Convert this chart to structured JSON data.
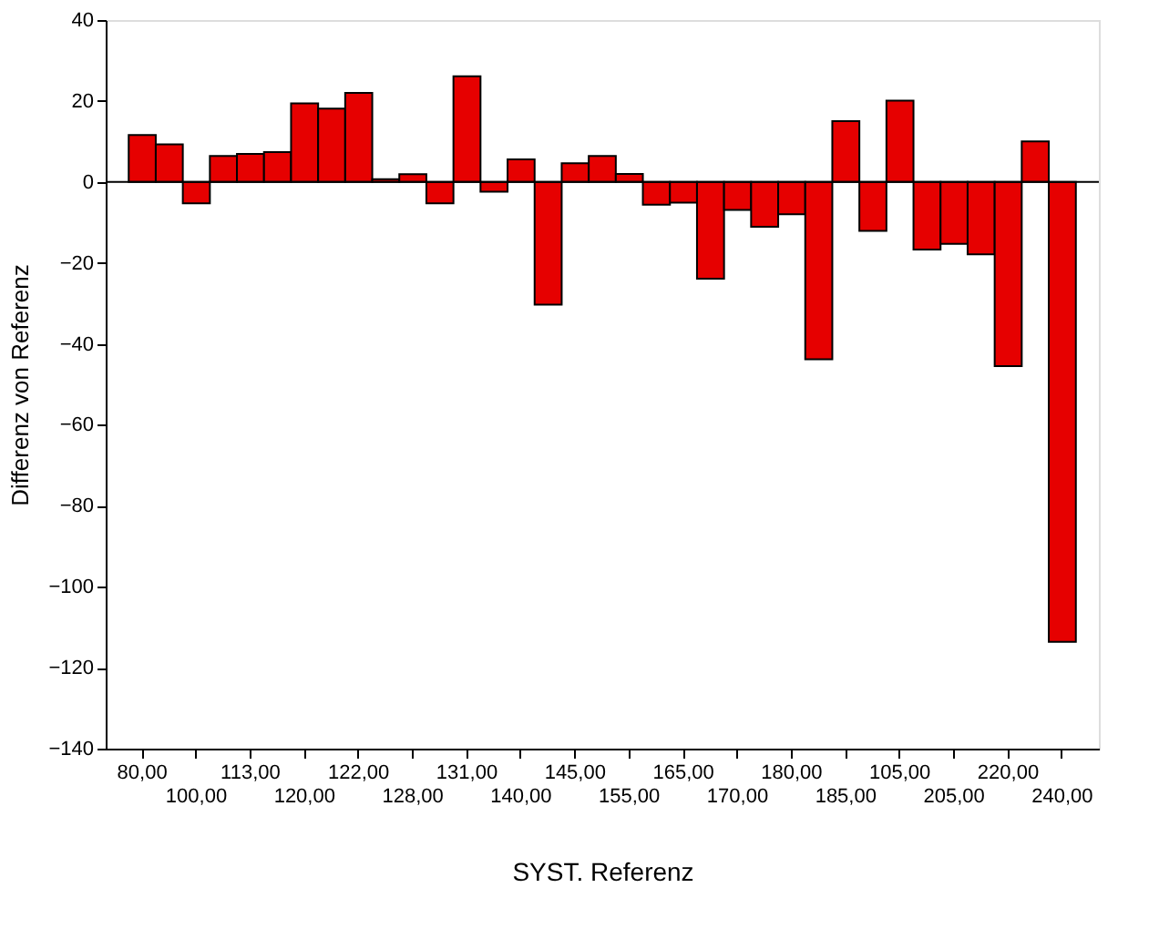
{
  "chart_data": {
    "type": "bar",
    "xlabel": "SYST. Referenz",
    "ylabel": "Differenz von Referenz",
    "categories": [
      "80,00",
      null,
      "100,00",
      null,
      "113,00",
      null,
      "120,00",
      null,
      "122,00",
      null,
      "128,00",
      null,
      "131,00",
      null,
      "140,00",
      null,
      "145,00",
      null,
      "155,00",
      null,
      "165,00",
      null,
      "170,00",
      null,
      "180,00",
      null,
      "185,00",
      null,
      "105,00",
      null,
      "205,00",
      null,
      "220,00",
      null,
      "240,00"
    ],
    "values": [
      11.6,
      9.3,
      -5.3,
      6.4,
      6.9,
      7.4,
      19.4,
      18.1,
      22,
      0.7,
      1.9,
      -5.3,
      26.1,
      -2.4,
      5.6,
      -30.3,
      4.6,
      6.4,
      2.0,
      -5.6,
      -5.1,
      -23.9,
      -6.9,
      -11.1,
      -8,
      -43.8,
      15,
      -12.1,
      20.1,
      -16.7,
      -15.3,
      -17.9,
      -45.5,
      10,
      -113.6
    ],
    "color": "#e60000",
    "ylim": [
      -140,
      40
    ],
    "yticks": [
      -140,
      -120,
      -100,
      -80,
      -60,
      -40,
      -20,
      0,
      20,
      40
    ],
    "ref_lines": [
      {
        "axis": "y",
        "value": 0
      }
    ],
    "grid": false
  }
}
